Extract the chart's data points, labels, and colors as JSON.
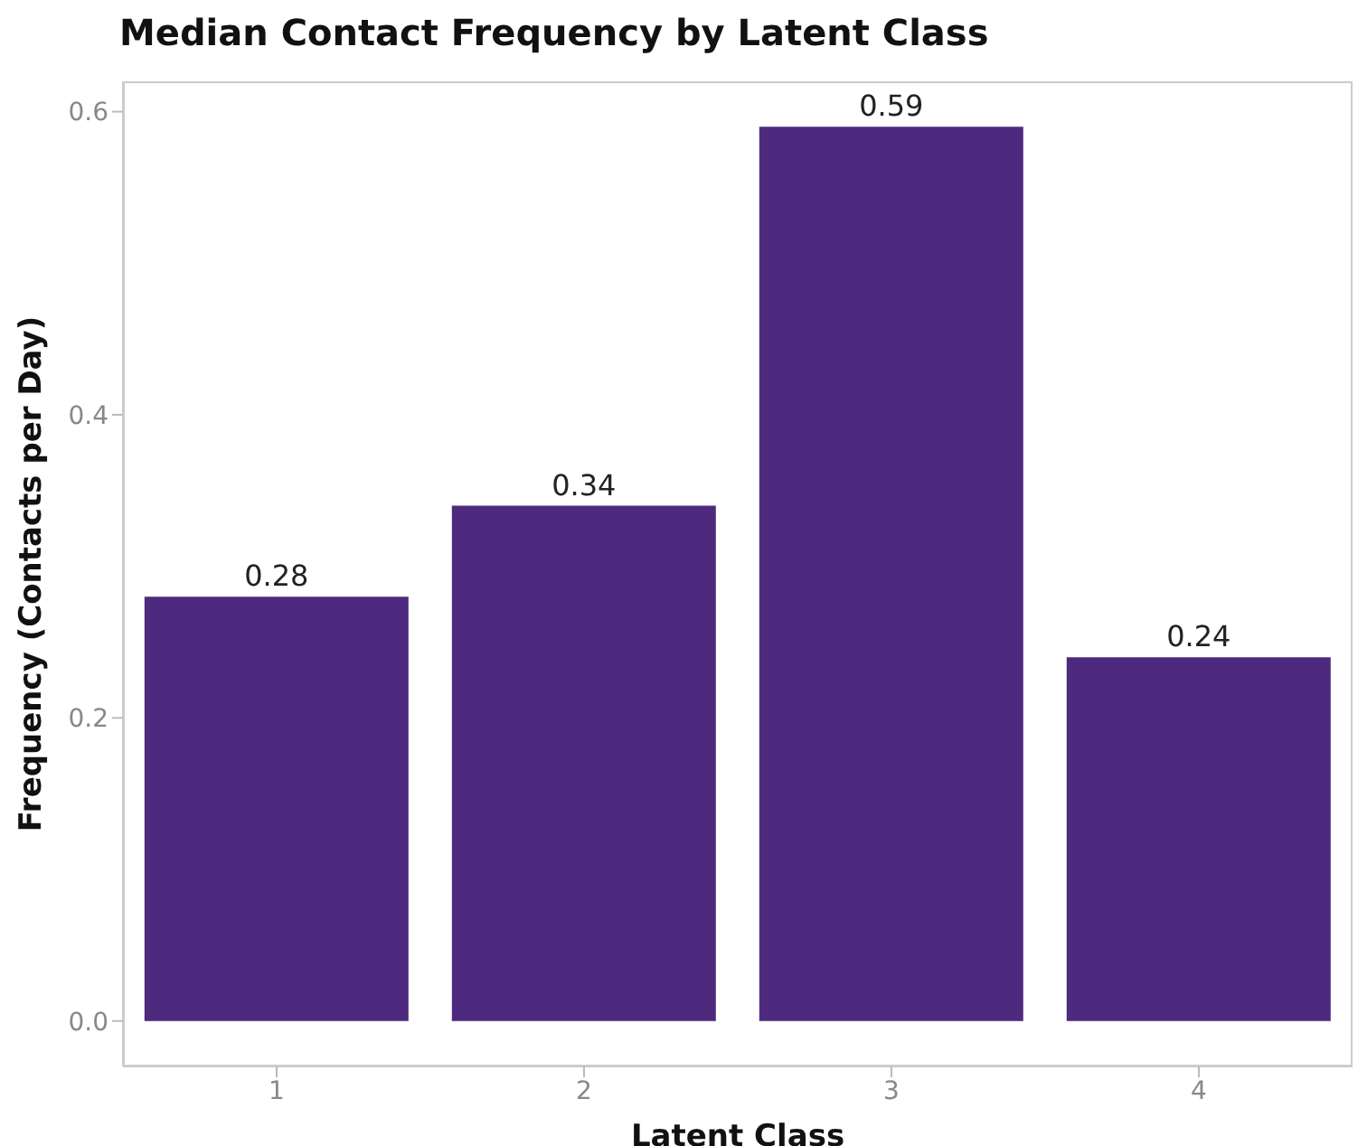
{
  "chart_data": {
    "type": "bar",
    "title": "Median Contact Frequency by Latent Class",
    "xlabel": "Latent Class",
    "ylabel": "Frequency (Contacts per Day)",
    "categories": [
      "1",
      "2",
      "3",
      "4"
    ],
    "values": [
      0.28,
      0.34,
      0.59,
      0.24
    ],
    "color": "#4e2a7e",
    "data_labels": true,
    "ylim": [
      -0.03,
      0.62
    ],
    "yticks": [
      {
        "value": 0,
        "label": "0.0"
      },
      {
        "value": 0.2,
        "label": "0.2"
      },
      {
        "value": 0.4,
        "label": "0.4"
      },
      {
        "value": 0.6,
        "label": "0.6"
      }
    ],
    "grid": false,
    "legend": false
  }
}
